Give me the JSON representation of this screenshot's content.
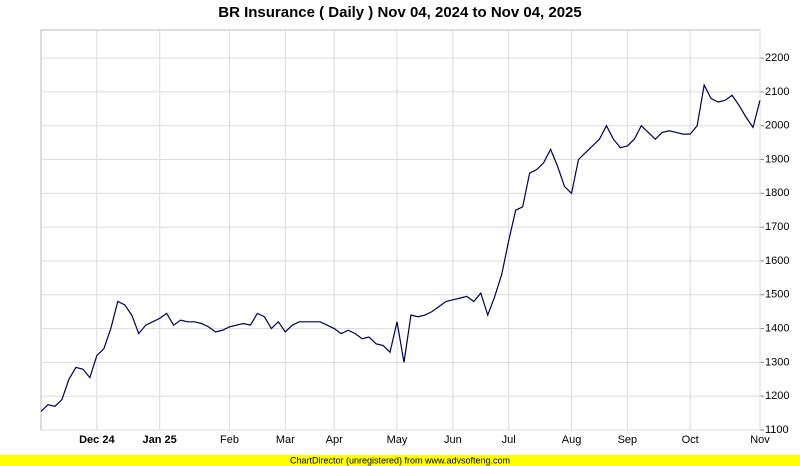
{
  "chart_data": {
    "type": "line",
    "title": "BR Insurance ( Daily ) Nov 04, 2024 to Nov 04, 2025",
    "footer": "ChartDirector (unregistered) from www.advsofteng.com",
    "categories": [
      null,
      null,
      null,
      null,
      null,
      null,
      null,
      null,
      "Dec 24",
      null,
      null,
      null,
      null,
      null,
      null,
      null,
      null,
      "Jan 25",
      null,
      null,
      null,
      null,
      null,
      null,
      null,
      null,
      null,
      "Feb",
      null,
      null,
      null,
      null,
      null,
      null,
      null,
      "Mar",
      null,
      null,
      null,
      null,
      null,
      null,
      "Apr",
      null,
      null,
      null,
      null,
      null,
      null,
      null,
      null,
      "May",
      null,
      null,
      null,
      null,
      null,
      null,
      null,
      "Jun",
      null,
      null,
      null,
      null,
      null,
      null,
      null,
      "Jul",
      null,
      null,
      null,
      null,
      null,
      null,
      null,
      null,
      "Aug",
      null,
      null,
      null,
      null,
      null,
      null,
      null,
      "Sep",
      null,
      null,
      null,
      null,
      null,
      null,
      null,
      null,
      "Oct",
      null,
      null,
      null,
      null,
      null,
      null,
      null,
      null,
      null,
      "Nov"
    ],
    "series": [
      {
        "color": "#000050",
        "values": [
          1155,
          1175,
          1170,
          1190,
          1250,
          1285,
          1280,
          1255,
          1320,
          1340,
          1400,
          1480,
          1470,
          1440,
          1385,
          1410,
          1420,
          1430,
          1445,
          1410,
          1425,
          1420,
          1420,
          1415,
          1405,
          1390,
          1395,
          1405,
          1410,
          1415,
          1410,
          1445,
          1435,
          1400,
          1420,
          1390,
          1410,
          1420,
          1420,
          1420,
          1420,
          1410,
          1400,
          1385,
          1395,
          1385,
          1370,
          1375,
          1355,
          1350,
          1330,
          1420,
          1300,
          1440,
          1435,
          1440,
          1450,
          1465,
          1480,
          1485,
          1490,
          1495,
          1480,
          1505,
          1440,
          1495,
          1560,
          1660,
          1750,
          1760,
          1860,
          1870,
          1890,
          1930,
          1880,
          1820,
          1800,
          1900,
          1920,
          1940,
          1960,
          2000,
          1960,
          1935,
          1940,
          1960,
          2000,
          1980,
          1960,
          1980,
          1985,
          1980,
          1975,
          1975,
          2000,
          2120,
          2080,
          2070,
          2075,
          2090,
          2060,
          2025,
          1995,
          2075
        ]
      }
    ],
    "ylim": [
      1100,
      2283
    ],
    "yticks": [
      1100,
      1200,
      1300,
      1400,
      1500,
      1600,
      1700,
      1800,
      1900,
      2000,
      2100,
      2200
    ],
    "grid": true
  }
}
